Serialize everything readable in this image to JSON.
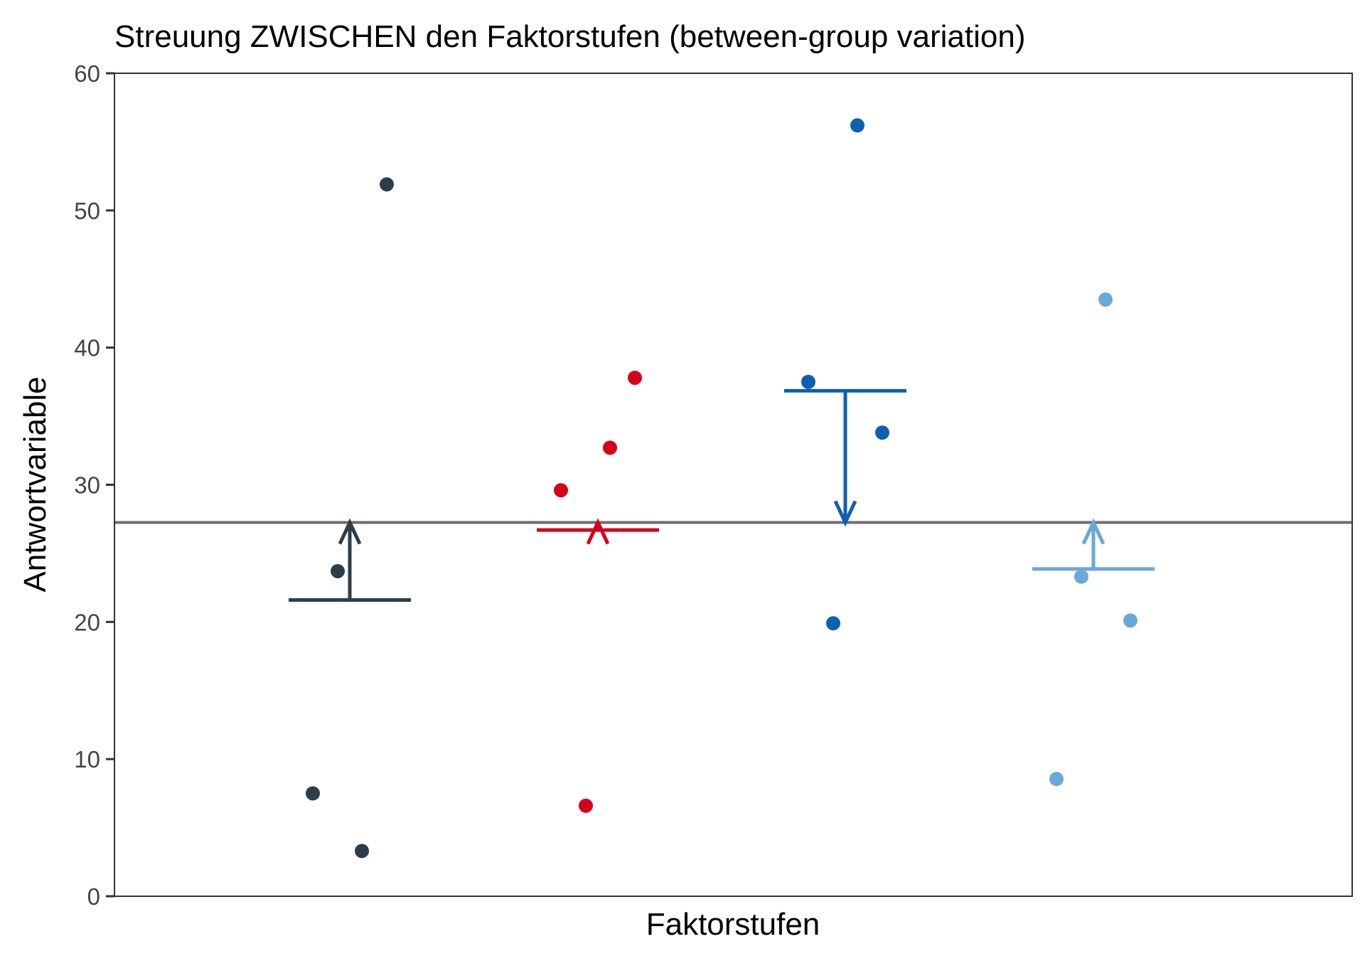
{
  "chart_data": {
    "type": "scatter",
    "title": "Streuung ZWISCHEN den Faktorstufen (between-group variation)",
    "xlabel": "Faktorstufen",
    "ylabel": "Antwortvariable",
    "ylim": [
      0,
      60
    ],
    "yticks": [
      0,
      10,
      20,
      30,
      40,
      50,
      60
    ],
    "ytick_labels": [
      "0",
      "10",
      "20",
      "30",
      "40",
      "50",
      "60"
    ],
    "grid": false,
    "legend": "none",
    "grand_mean": 27.25,
    "grand_mean_color": "#6e6e6e",
    "groups": [
      {
        "color": "#2c3e4a",
        "values": [
          7.5,
          3.3,
          23.7,
          51.9
        ],
        "mean": 21.6
      },
      {
        "color": "#d7001a",
        "values": [
          29.6,
          6.6,
          32.7,
          37.8
        ],
        "mean": 26.7
      },
      {
        "color": "#0f5fb0",
        "values": [
          37.5,
          19.9,
          56.2,
          33.8
        ],
        "mean": 36.85
      },
      {
        "color": "#6aa8d8",
        "values": [
          8.55,
          23.3,
          43.5,
          20.1
        ],
        "mean": 23.86
      }
    ]
  }
}
